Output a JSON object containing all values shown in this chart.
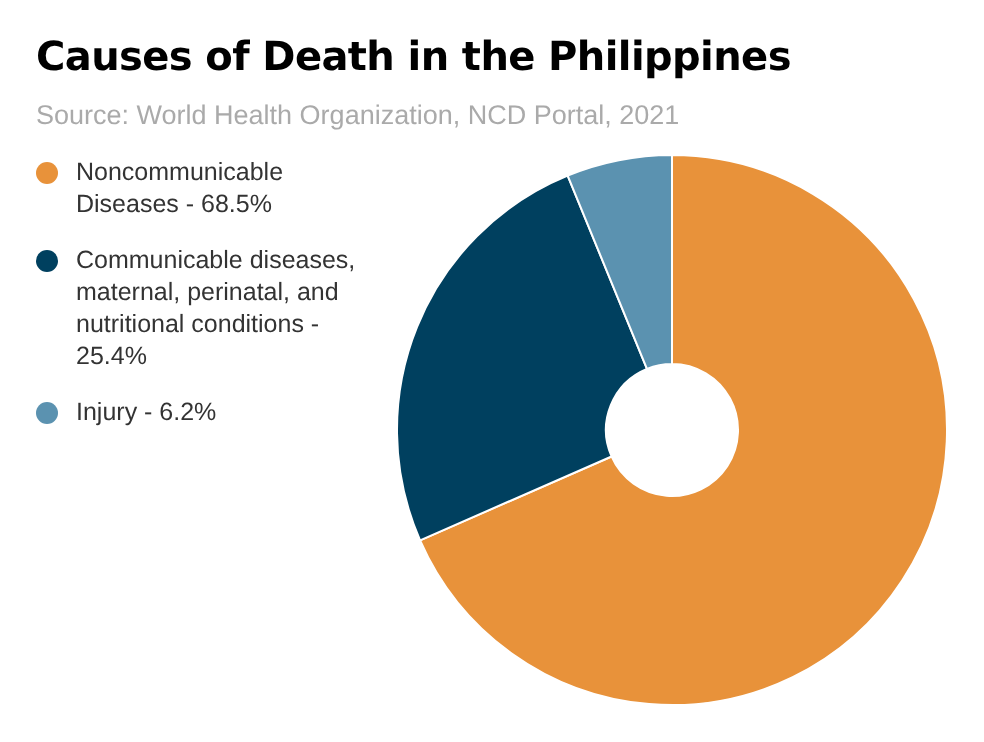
{
  "chart_data": {
    "type": "donut",
    "title": "Causes of Death in the Philippines",
    "subtitle": "Source: World Health Organization, NCD Portal, 2021",
    "categories": [
      "Noncommunicable Diseases - 68.5%",
      "Communicable diseases, maternal, perinatal, and nutritional conditions - 25.4%",
      "Injury - 6.2%"
    ],
    "values": [
      68.5,
      25.4,
      6.2
    ],
    "colors": [
      "#e8923a",
      "#00405f",
      "#5b92b0"
    ],
    "legend": "left"
  }
}
